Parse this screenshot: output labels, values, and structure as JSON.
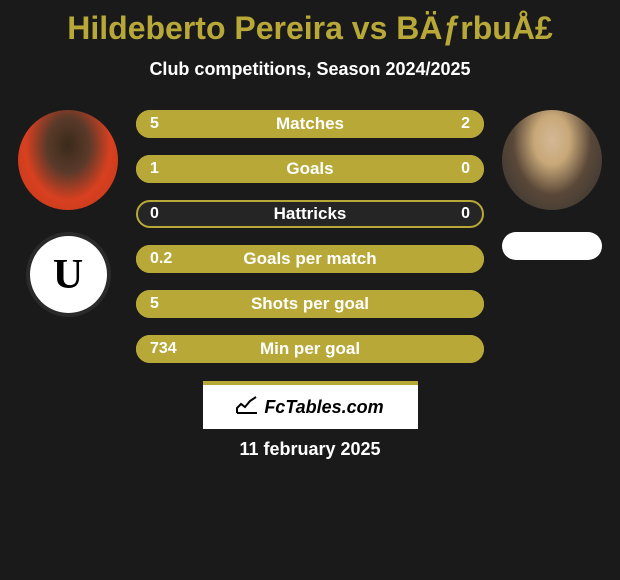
{
  "header": {
    "title": "Hildeberto Pereira vs BÄƒrbuÅ£",
    "subtitle": "Club competitions, Season 2024/2025"
  },
  "colors": {
    "accent": "#b8a838",
    "background": "#1a1a1a",
    "bar_empty": "#252525",
    "text": "#ffffff"
  },
  "stats": [
    {
      "label": "Matches",
      "value1": "5",
      "value2": "2",
      "width1": 71.4,
      "width2": 28.6
    },
    {
      "label": "Goals",
      "value1": "1",
      "value2": "0",
      "width1": 100,
      "width2": 0
    },
    {
      "label": "Hattricks",
      "value1": "0",
      "value2": "0",
      "width1": 0,
      "width2": 0
    },
    {
      "label": "Goals per match",
      "value1": "0.2",
      "value2": "",
      "width1": 100,
      "width2": 0
    },
    {
      "label": "Shots per goal",
      "value1": "5",
      "value2": "",
      "width1": 100,
      "width2": 0
    },
    {
      "label": "Min per goal",
      "value1": "734",
      "value2": "",
      "width1": 100,
      "width2": 0
    }
  ],
  "footer": {
    "site_name": "FcTables.com",
    "date": "11 february 2025"
  }
}
